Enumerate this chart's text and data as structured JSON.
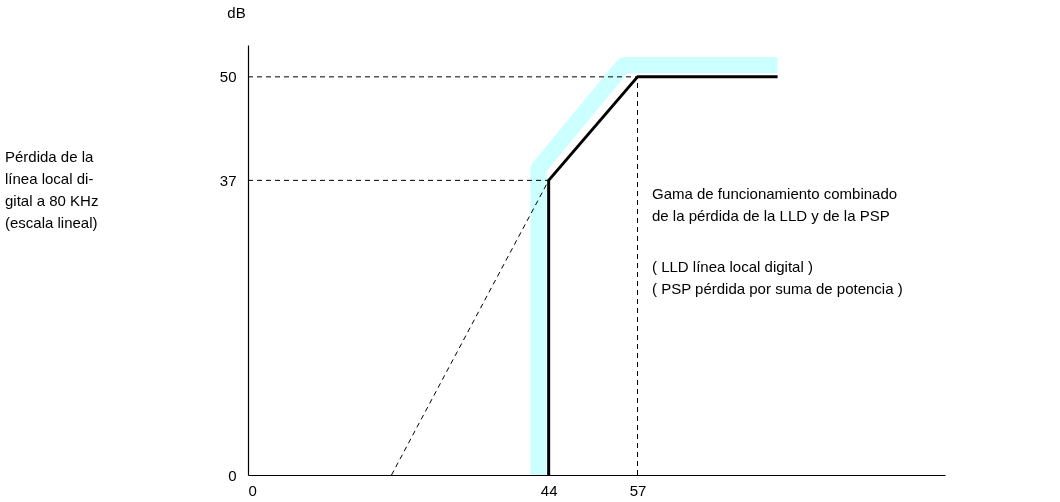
{
  "chart_data": {
    "type": "line",
    "ylabel": "dB",
    "xlim": [
      0,
      102
    ],
    "ylim": [
      0,
      54
    ],
    "xticks": [
      0,
      44,
      57
    ],
    "yticks": [
      0,
      37,
      50
    ],
    "grid": false,
    "marker": "none",
    "series": [
      {
        "color": "#ccffff",
        "line_style": "solid",
        "x": [
          42.5,
          42.5,
          55,
          77.5
        ],
        "values": [
          0,
          38.5,
          51.5,
          51.5
        ]
      },
      {
        "color": "#000000",
        "line_style": "solid",
        "x": [
          44,
          44,
          57,
          77.5
        ],
        "values": [
          0,
          37,
          50,
          50
        ]
      },
      {
        "color": "#000000",
        "line_style": "dashed",
        "x": [
          21,
          44
        ],
        "values": [
          0,
          37
        ]
      },
      {
        "color": "#000000",
        "line_style": "dashed",
        "x": [
          0,
          57
        ],
        "values": [
          50,
          50
        ]
      },
      {
        "color": "#000000",
        "line_style": "dashed",
        "x": [
          0,
          44
        ],
        "values": [
          37,
          37
        ]
      },
      {
        "color": "#000000",
        "line_style": "dashed",
        "x": [
          57,
          57
        ],
        "values": [
          0,
          50
        ]
      }
    ],
    "annotations": [
      "Pérdida de la\nlínea local di-\ngital a 80 KHz\n(escala lineal)",
      "Gama de funcionamiento combinado\nde la  pérdida de la  LLD y de la PSP",
      "( LLD línea local digital )\n( PSP pérdida por suma de potencia )"
    ]
  }
}
